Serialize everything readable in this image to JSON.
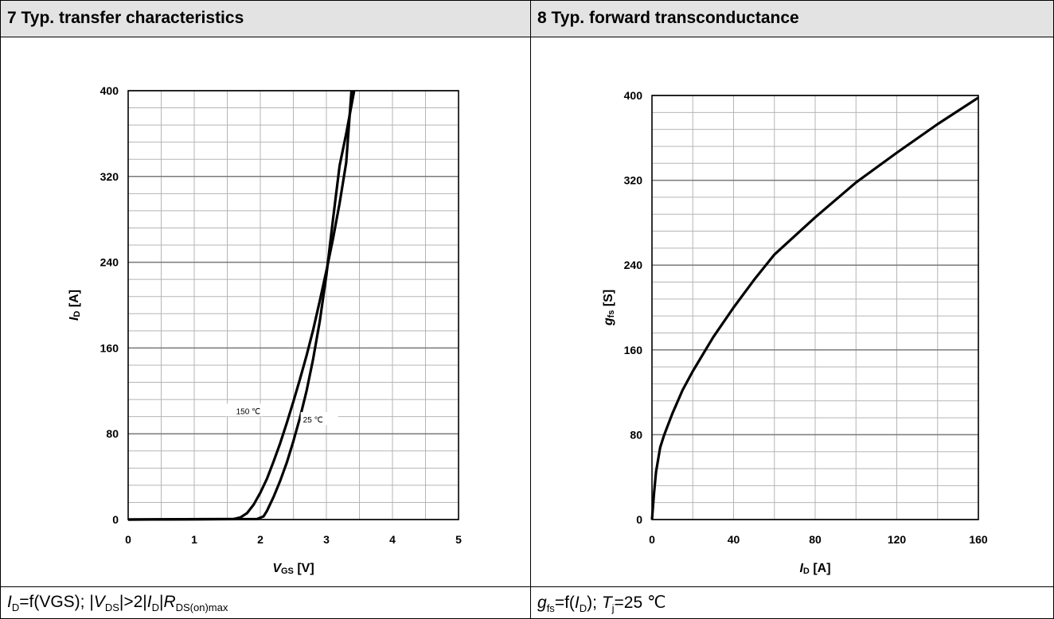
{
  "panels": [
    {
      "header": "7 Typ. transfer characteristics",
      "caption": {
        "p1": "I",
        "p1s": "D",
        "p2": "=f(VGS); |",
        "p3": "V",
        "p3s": "DS",
        "p4": "|>2|",
        "p5": "I",
        "p5s": "D",
        "p6": "|",
        "p7": "R",
        "p7s": "DS(on)max"
      }
    },
    {
      "header": "8 Typ. forward transconductance",
      "caption": {
        "p1": "g",
        "p1s": "fs",
        "p2": "=f(",
        "p3": "I",
        "p3s": "D",
        "p4": "); ",
        "p5": "T",
        "p5s": "j",
        "p6": "=25 ℃"
      }
    }
  ],
  "chart_data": [
    {
      "type": "line",
      "xlabel": "V",
      "xlabel_sub": "GS",
      "xlabel_unit": " [V]",
      "ylabel": "I",
      "ylabel_sub": "D",
      "ylabel_unit": " [A]",
      "xlim": [
        0,
        5
      ],
      "ylim": [
        0,
        400
      ],
      "xticks": [
        0,
        1,
        2,
        3,
        4,
        5
      ],
      "yticks": [
        0,
        80,
        160,
        240,
        320,
        400
      ],
      "grid": true,
      "series": [
        {
          "name": "150 ℃",
          "x": [
            0,
            1.6,
            1.7,
            1.8,
            1.9,
            2.0,
            2.1,
            2.2,
            2.3,
            2.4,
            2.5,
            2.6,
            2.7,
            2.8,
            2.9,
            3.0,
            3.1,
            3.2,
            3.3,
            3.38
          ],
          "y": [
            0,
            0.5,
            2,
            6,
            14,
            25,
            38,
            54,
            71,
            90,
            110,
            131,
            153,
            177,
            204,
            232,
            262,
            295,
            333,
            400
          ]
        },
        {
          "name": "25 ℃",
          "x": [
            0,
            1.95,
            2.05,
            2.1,
            2.2,
            2.3,
            2.4,
            2.5,
            2.6,
            2.7,
            2.8,
            2.9,
            3.0,
            3.1,
            3.2,
            3.3,
            3.42
          ],
          "y": [
            0,
            0.5,
            3,
            8,
            21,
            36,
            53,
            73,
            95,
            120,
            150,
            185,
            228,
            280,
            330,
            360,
            400
          ]
        }
      ]
    },
    {
      "type": "line",
      "xlabel": "I",
      "xlabel_sub": "D",
      "xlabel_unit": " [A]",
      "ylabel": "g",
      "ylabel_sub": "fs",
      "ylabel_unit": " [S]",
      "xlim": [
        0,
        160
      ],
      "ylim": [
        0,
        400
      ],
      "xticks": [
        0,
        40,
        80,
        120,
        160
      ],
      "yticks": [
        0,
        80,
        160,
        240,
        320,
        400
      ],
      "grid": true,
      "series": [
        {
          "name": "",
          "x": [
            0,
            1,
            2,
            4,
            6,
            10,
            15,
            20,
            30,
            40,
            50,
            60,
            80,
            100,
            120,
            140,
            160
          ],
          "y": [
            0,
            25,
            45,
            68,
            80,
            100,
            122,
            140,
            172,
            200,
            226,
            250,
            285,
            318,
            346,
            373,
            398
          ]
        }
      ]
    }
  ]
}
